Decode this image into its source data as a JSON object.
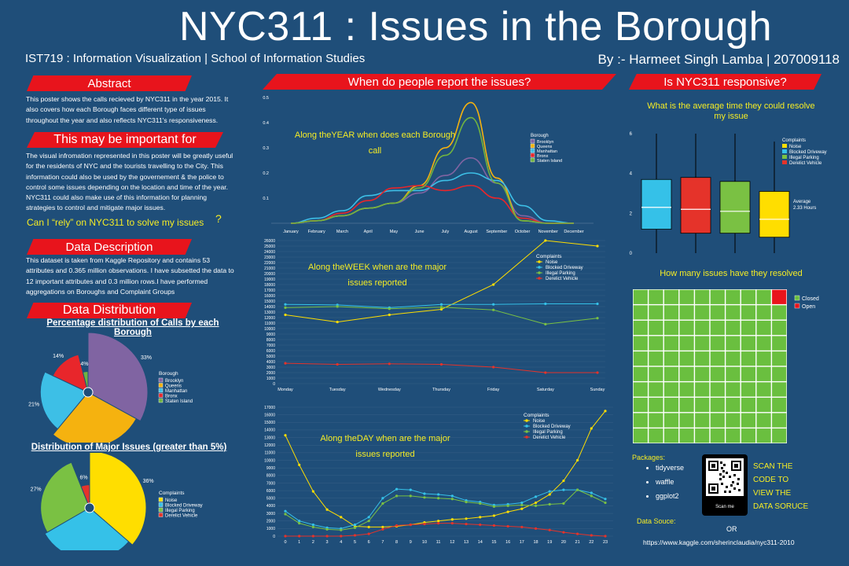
{
  "header": {
    "title": "NYC311 : Issues in the Borough",
    "subtitle": "IST719 : Information Visualization | School of Information Studies",
    "byline": "By :- Harmeet Singh Lamba | 207009118"
  },
  "sections": {
    "abstract": "Abstract",
    "important": "This may be important for",
    "data_desc": "Data Description",
    "data_dist": "Data Distribution",
    "when": "When do people report the issues?",
    "responsive": "Is NYC311 responsive?"
  },
  "text": {
    "abstract_body": "This poster shows the calls recieved by NYC311 in the year 2015. It also covers how each Borough faces different type of issues throughout the year and also reflects NYC311's responsiveness.",
    "important_body": "The visual infromation represented in this poster will be greatly useful for the residents of NYC and the tourists travelling to the City. This information could also be used by the governement & the police to control some issues depending on the location and time of the year. NYC311 could also make use of this information for planning strategies to control and mitigate major issues.",
    "rely_question": "Can I “rely”  on NYC311 to solve my issues",
    "data_desc_body": "This dataset is taken from Kaggle Repository and contains 53 attributes and 0.365 million observations. I have subsetted the data to 12 important attributes and 0.3 million rows.I have performed aggregations on Boroughs and Complaint Groups",
    "pct_title": "Percentage distribution of Calls by each Borough",
    "issues_title": "Distribution of Major Issues (greater than 5%)",
    "year_q": "Along theYEAR when does each Borough call",
    "week_q": "Along theWEEK when are the major issues reported",
    "day_q": "Along theDAY when are the major issues reported",
    "avg_time_q": "What is the average time they could resolve my issue",
    "resolved_q": "How many issues have they resolved",
    "packages_label": "Packages:",
    "packages": [
      "tidyverse",
      "waffle",
      "ggplot2"
    ],
    "scan_text": [
      "SCAN THE",
      "CODE TO",
      "VIEW THE",
      "DATA SORUCE"
    ],
    "scan_me": "Scan me",
    "data_source_label": "Data Souce:",
    "or": "OR",
    "url": "https://www.kaggle.com/sherinclaudia/nyc311-2010"
  },
  "colors": {
    "background": "#1f4e79",
    "banner": "#e8141c",
    "highlight": "#f5ec25",
    "brooklyn": "#8064a2",
    "queens": "#f5b20f",
    "manhattan": "#3dbfe6",
    "bronx": "#e8262b",
    "staten_island": "#70b340",
    "noise": "#ffde00",
    "blocked_driveway": "#35c1e8",
    "illegal_parking": "#7ac143",
    "derelict_vehicle": "#e5332a",
    "closed": "#6abf3f",
    "open": "#e8141c"
  },
  "chart_data": [
    {
      "type": "pie",
      "title": "Percentage distribution of Calls by each Borough",
      "legend_title": "Borough",
      "categories": [
        "Brooklyn",
        "Queens",
        "Manhattan",
        "Bronx",
        "Staten Island"
      ],
      "values": [
        33,
        28,
        21,
        14,
        4
      ],
      "labels": [
        "33%",
        "28%",
        "21%",
        "14%",
        "4%"
      ]
    },
    {
      "type": "pie",
      "title": "Distribution of Major Issues (greater than 5%)",
      "legend_title": "Complaints",
      "categories": [
        "Noise",
        "Blocked Driveway",
        "Illegal Parking",
        "Derelict Vehicle"
      ],
      "values": [
        36,
        30,
        27,
        6
      ],
      "labels": [
        "36%",
        "30%",
        "27%",
        "6%"
      ]
    },
    {
      "type": "area",
      "title": "Along theYEAR when does each Borough call",
      "legend_title": "Borough",
      "x_ticks": [
        "January",
        "February",
        "March",
        "April",
        "May",
        "June",
        "July",
        "August",
        "September",
        "October",
        "November",
        "December"
      ],
      "y_ticks": [
        "0.1",
        "0.2",
        "0.3",
        "0.4",
        "0.5"
      ],
      "ylim": [
        0,
        0.5
      ],
      "series": [
        {
          "name": "Brooklyn",
          "values": [
            0,
            0.01,
            0.03,
            0.06,
            0.08,
            0.12,
            0.19,
            0.26,
            0.16,
            0.03,
            0,
            0
          ]
        },
        {
          "name": "Queens",
          "values": [
            0,
            0.01,
            0.03,
            0.06,
            0.08,
            0.15,
            0.3,
            0.48,
            0.18,
            0.01,
            0,
            0
          ]
        },
        {
          "name": "Manhattan",
          "values": [
            0,
            0.02,
            0.05,
            0.11,
            0.13,
            0.13,
            0.17,
            0.2,
            0.17,
            0.07,
            0.01,
            0
          ]
        },
        {
          "name": "Bronx",
          "values": [
            0,
            0.01,
            0.04,
            0.09,
            0.14,
            0.15,
            0.13,
            0.15,
            0.1,
            0.02,
            0,
            0
          ]
        },
        {
          "name": "Staten Island",
          "values": [
            0,
            0.01,
            0.03,
            0.06,
            0.08,
            0.14,
            0.27,
            0.42,
            0.16,
            0.01,
            0,
            0
          ]
        }
      ]
    },
    {
      "type": "line",
      "title": "Along theWEEK when are the major issues reported",
      "legend_title": "Complaints",
      "categories": [
        "Monday",
        "Tuesday",
        "Wednesday",
        "Thursday",
        "Friday",
        "Saturday",
        "Sunday"
      ],
      "y_ticks": [
        0,
        1000,
        2000,
        3000,
        4000,
        5000,
        6000,
        7000,
        8000,
        9000,
        10000,
        11000,
        12000,
        13000,
        14000,
        15000,
        16000,
        17000,
        18000,
        19000,
        20000,
        21000,
        22000,
        23000,
        24000,
        25000,
        26000
      ],
      "ylim": [
        0,
        26000
      ],
      "series": [
        {
          "name": "Noise",
          "values": [
            12500,
            11200,
            12500,
            13500,
            18000,
            26000,
            25000
          ]
        },
        {
          "name": "Blocked Driveway",
          "values": [
            14400,
            14300,
            13800,
            14400,
            14400,
            14500,
            14500
          ]
        },
        {
          "name": "Illegal Parking",
          "values": [
            13800,
            14000,
            13600,
            13900,
            13400,
            10800,
            11900
          ]
        },
        {
          "name": "Derelict Vehicle",
          "values": [
            3700,
            3500,
            3600,
            3500,
            3000,
            2000,
            2000
          ]
        }
      ]
    },
    {
      "type": "line",
      "title": "Along theDAY when are the major issues reported",
      "legend_title": "Complaints",
      "categories": [
        "0",
        "1",
        "2",
        "3",
        "4",
        "5",
        "6",
        "7",
        "8",
        "9",
        "10",
        "11",
        "12",
        "13",
        "14",
        "15",
        "16",
        "17",
        "18",
        "19",
        "20",
        "21",
        "22",
        "23"
      ],
      "y_ticks": [
        0,
        1000,
        2000,
        3000,
        4000,
        5000,
        6000,
        7000,
        8000,
        9000,
        10000,
        11000,
        12000,
        13000,
        14000,
        15000,
        16000,
        17000
      ],
      "ylim": [
        0,
        17000
      ],
      "series": [
        {
          "name": "Noise",
          "values": [
            13300,
            9400,
            5900,
            3500,
            2500,
            1300,
            1200,
            1200,
            1300,
            1500,
            1800,
            2000,
            2200,
            2300,
            2500,
            2700,
            3200,
            3600,
            4400,
            5500,
            7300,
            10000,
            14200,
            16500
          ]
        },
        {
          "name": "Blocked Driveway",
          "values": [
            3300,
            2000,
            1500,
            1100,
            1000,
            1500,
            2500,
            5000,
            6200,
            6100,
            5600,
            5500,
            5300,
            4700,
            4500,
            4100,
            4200,
            4400,
            5200,
            5900,
            6100,
            6100,
            5700,
            4900
          ]
        },
        {
          "name": "Illegal Parking",
          "values": [
            2900,
            1700,
            1200,
            900,
            800,
            1100,
            2000,
            4300,
            5300,
            5300,
            5100,
            5000,
            4900,
            4500,
            4300,
            3900,
            4000,
            4100,
            4000,
            4200,
            4300,
            6100,
            5300,
            4400
          ]
        },
        {
          "name": "Derelict Vehicle",
          "values": [
            0,
            0,
            0,
            0,
            0,
            100,
            300,
            900,
            1400,
            1500,
            1600,
            1700,
            1700,
            1600,
            1500,
            1400,
            1300,
            1200,
            1000,
            800,
            500,
            300,
            100,
            0
          ]
        }
      ]
    },
    {
      "type": "box",
      "title": "What is the average time they could resolve my issue",
      "legend_title": "Complaints",
      "categories": [
        "Noise",
        "Blocked Driveway",
        "Illegal Parking",
        "Derelict Vehicle"
      ],
      "y_ticks": [
        0,
        2,
        4,
        6
      ],
      "ylim": [
        0,
        6
      ],
      "boxes": [
        {
          "name": "Noise",
          "whisker_low": 0,
          "q1": 1.2,
          "median": 2.3,
          "q3": 3.7,
          "whisker_high": 6.0
        },
        {
          "name": "Blocked Driveway",
          "whisker_low": 0,
          "q1": 1.0,
          "median": 2.2,
          "q3": 3.8,
          "whisker_high": 6.0
        },
        {
          "name": "Illegal Parking",
          "whisker_low": 0,
          "q1": 1.0,
          "median": 2.1,
          "q3": 3.6,
          "whisker_high": 6.0
        },
        {
          "name": "Derelict Vehicle",
          "whisker_low": 0,
          "q1": 0.8,
          "median": 1.7,
          "q3": 3.1,
          "whisker_high": 5.6
        }
      ],
      "reference": {
        "label": "Average\n2.33 Hours",
        "value": 2.33
      }
    },
    {
      "type": "waffle",
      "title": "How many issues have they resolved",
      "categories": [
        "Closed",
        "Open"
      ],
      "values": [
        99,
        1
      ],
      "grid": {
        "cols": 10,
        "rows": 10
      }
    }
  ]
}
